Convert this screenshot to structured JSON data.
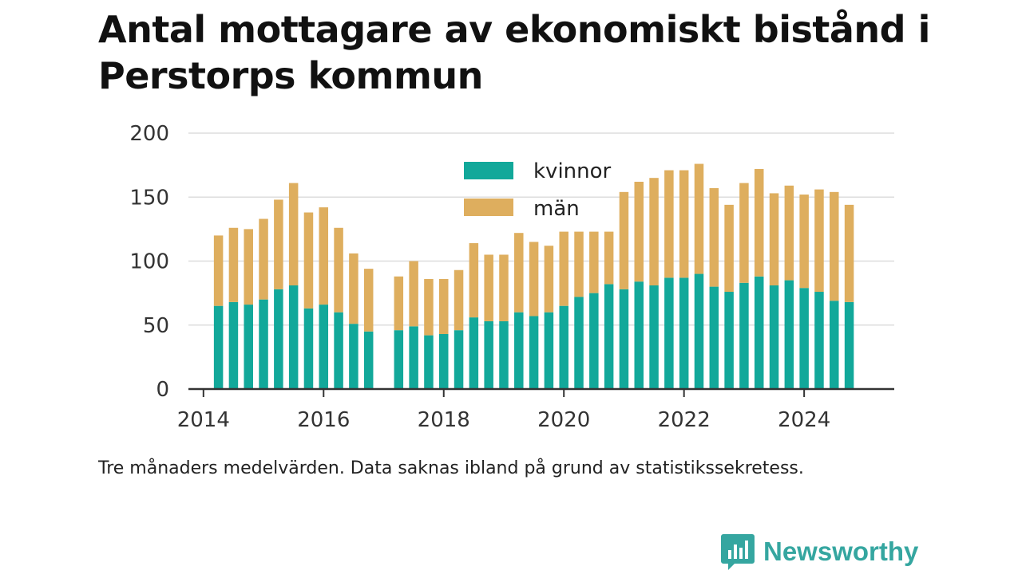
{
  "title": "Antal mottagare av ekonomiskt bistånd i Perstorps kommun",
  "note": "Tre månaders medelvärden. Data saknas ibland på grund av statistikssekretess.",
  "brand": "Newsworthy",
  "colors": {
    "kvinnor": "#12a89a",
    "man": "#deae5e",
    "axis": "#333333",
    "grid": "#dddddd",
    "brand": "#35a6a0"
  },
  "chart_data": {
    "type": "bar",
    "stacked": true,
    "title": "Antal mottagare av ekonomiskt bistånd i Perstorps kommun",
    "xlabel": "",
    "ylabel": "",
    "ylim": [
      0,
      200
    ],
    "yticks": [
      "0",
      "50",
      "100",
      "150",
      "200"
    ],
    "xticks": [
      "2014",
      "2016",
      "2018",
      "2020",
      "2022",
      "2024"
    ],
    "xlim": [
      "2013-10",
      "2025-07"
    ],
    "grid": true,
    "legend_position": "top-center",
    "x": [
      "2014-04",
      "2014-07",
      "2014-10",
      "2015-01",
      "2015-04",
      "2015-07",
      "2015-10",
      "2016-01",
      "2016-04",
      "2016-07",
      "2016-10",
      "2017-04",
      "2017-07",
      "2017-10",
      "2018-01",
      "2018-04",
      "2018-07",
      "2018-10",
      "2019-01",
      "2019-04",
      "2019-07",
      "2019-10",
      "2020-01",
      "2020-04",
      "2020-07",
      "2020-10",
      "2021-01",
      "2021-04",
      "2021-07",
      "2021-10",
      "2022-01",
      "2022-04",
      "2022-07",
      "2022-10",
      "2023-01",
      "2023-04",
      "2023-07",
      "2023-10",
      "2024-01",
      "2024-04",
      "2024-07",
      "2024-10"
    ],
    "series": [
      {
        "name": "kvinnor",
        "values": [
          65,
          68,
          66,
          70,
          78,
          81,
          63,
          66,
          60,
          51,
          45,
          46,
          49,
          42,
          43,
          46,
          56,
          53,
          53,
          60,
          57,
          60,
          65,
          72,
          75,
          82,
          78,
          84,
          81,
          87,
          87,
          90,
          80,
          76,
          83,
          88,
          81,
          85,
          79,
          76,
          69,
          68
        ]
      },
      {
        "name": "män",
        "values": [
          55,
          58,
          59,
          63,
          70,
          80,
          75,
          76,
          66,
          55,
          49,
          42,
          51,
          44,
          43,
          47,
          58,
          52,
          52,
          62,
          58,
          52,
          58,
          51,
          48,
          41,
          76,
          78,
          84,
          84,
          84,
          86,
          77,
          68,
          78,
          84,
          72,
          74,
          73,
          80,
          85,
          76
        ]
      }
    ]
  }
}
